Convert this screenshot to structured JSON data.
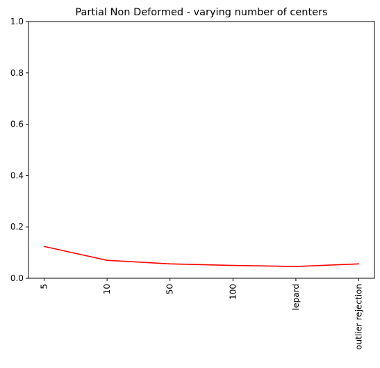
{
  "chart_data": {
    "type": "line",
    "title": "Partial Non Deformed - varying number of centers",
    "xlabel": "",
    "ylabel": "",
    "categories": [
      "5",
      "10",
      "50",
      "100",
      "lepard",
      "outlier rejection"
    ],
    "series": [
      {
        "values": [
          0.124,
          0.07,
          0.056,
          0.05,
          0.046,
          0.056
        ],
        "color": "#ff0000"
      }
    ],
    "ylim": [
      0,
      1
    ],
    "yticks": [
      "0.0",
      "0.2",
      "0.4",
      "0.6",
      "0.8",
      "1.0"
    ],
    "xtick_rotation": "vertical",
    "grid": false,
    "legend": "none"
  }
}
